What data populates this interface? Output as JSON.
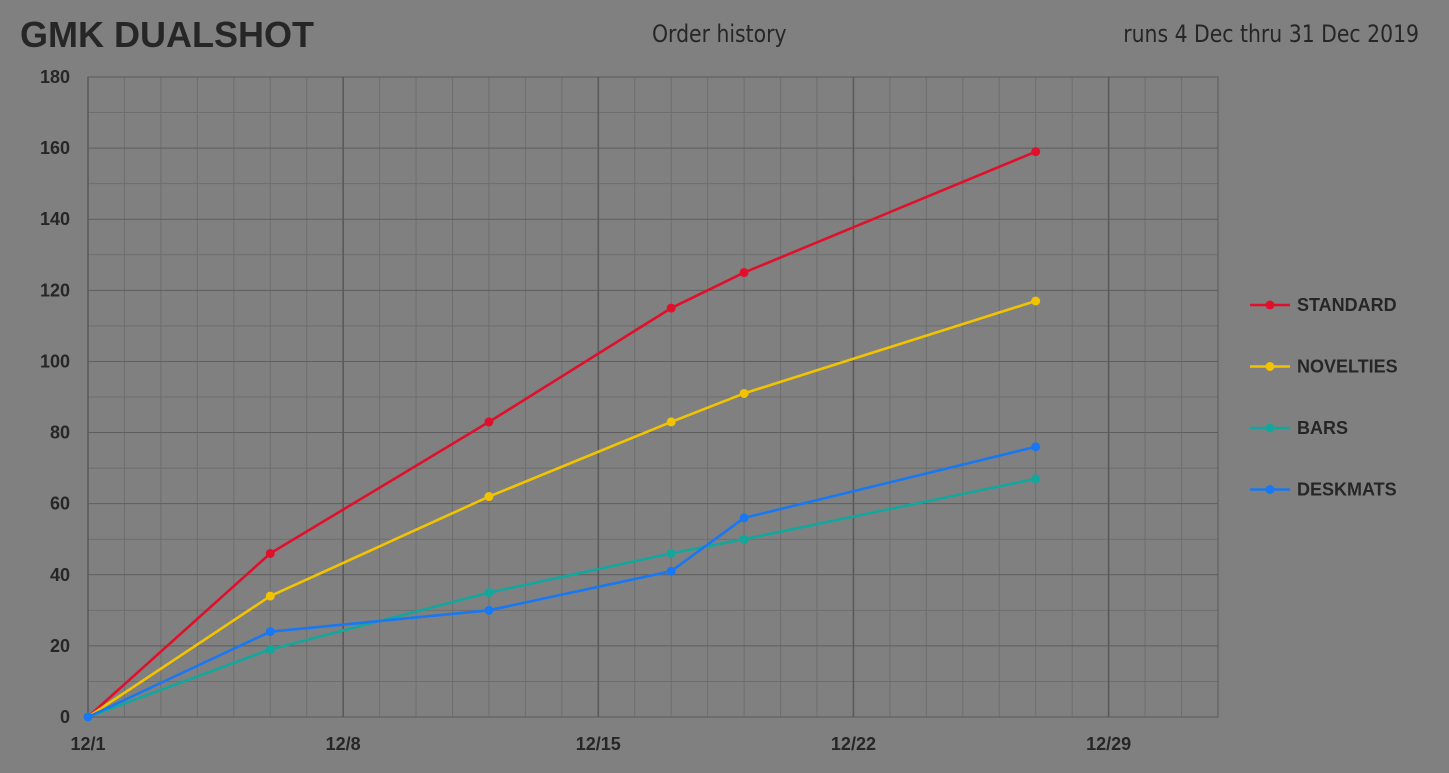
{
  "header": {
    "title": "GMK DUALSHOT",
    "subtitle": "Order history",
    "runs": "runs 4 Dec thru 31 Dec 2019"
  },
  "chart_data": {
    "type": "line",
    "x_unit": "date",
    "x_ticks": [
      "12/1",
      "12/8",
      "12/15",
      "12/22",
      "12/29"
    ],
    "xlim": [
      "12/1",
      "12/31"
    ],
    "ylim": [
      0,
      180
    ],
    "y_ticks": [
      0,
      20,
      40,
      60,
      80,
      100,
      120,
      140,
      160,
      180
    ],
    "grid": true,
    "legend_position": "right",
    "x": [
      "12/1",
      "12/6",
      "12/12",
      "12/17",
      "12/19",
      "12/27"
    ],
    "series": [
      {
        "name": "STANDARD",
        "color": "#E0102C",
        "values": [
          0,
          46,
          83,
          115,
          125,
          159
        ]
      },
      {
        "name": "NOVELTIES",
        "color": "#F2C300",
        "values": [
          0,
          34,
          62,
          83,
          91,
          117
        ]
      },
      {
        "name": "BARS",
        "color": "#12A79D",
        "values": [
          0,
          19,
          35,
          46,
          50,
          67
        ]
      },
      {
        "name": "DESKMATS",
        "color": "#1877F2",
        "values": [
          0,
          24,
          30,
          41,
          56,
          76
        ]
      }
    ]
  }
}
